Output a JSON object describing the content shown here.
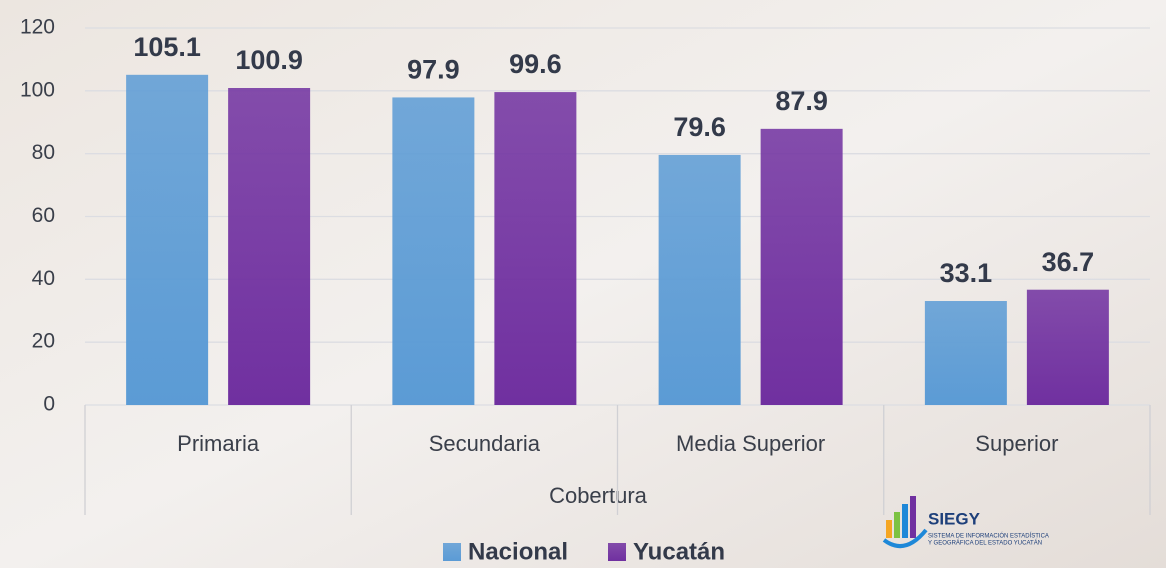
{
  "chart_data": {
    "type": "bar",
    "x_label": "Cobertura",
    "categories": [
      "Primaria",
      "Secundaria",
      "Media Superior",
      "Superior"
    ],
    "series": [
      {
        "name": "Nacional",
        "color": "#5b9bd5",
        "values": [
          105.1,
          97.9,
          79.6,
          33.1
        ]
      },
      {
        "name": "Yucatán",
        "color": "#7030a0",
        "values": [
          100.9,
          99.6,
          87.9,
          36.7
        ]
      }
    ],
    "ylim": [
      0,
      120
    ],
    "yticks": [
      0,
      20,
      40,
      60,
      80,
      100,
      120
    ],
    "grid": true,
    "legend": "bottom"
  },
  "logo": {
    "name": "SIEGY",
    "line1": "SISTEMA DE INFORMACIÓN ESTADÍSTICA",
    "line2": "Y GEOGRÁFICA DEL ESTADO YUCATÁN"
  }
}
